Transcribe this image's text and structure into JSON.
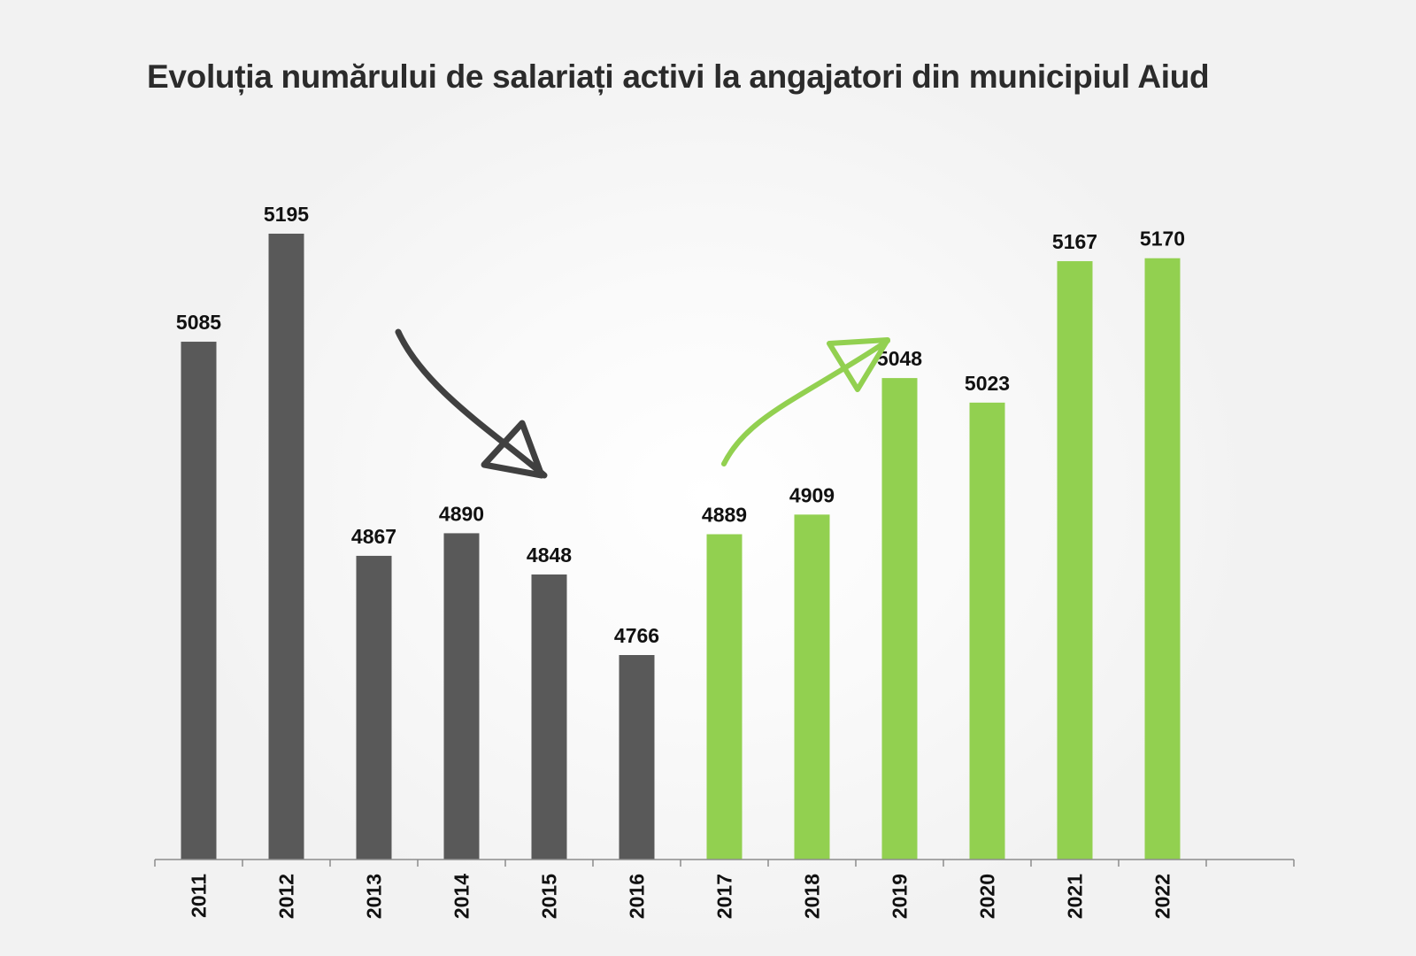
{
  "chart_data": {
    "type": "bar",
    "title": "Evoluția numărului de salariați activi la angajatori din municipiul Aiud",
    "xlabel": "",
    "ylabel": "",
    "categories": [
      "2011",
      "2012",
      "2013",
      "2014",
      "2015",
      "2016",
      "2017",
      "2018",
      "2019",
      "2020",
      "2021",
      "2022"
    ],
    "values": [
      5085,
      5195,
      4867,
      4890,
      4848,
      4766,
      4889,
      4909,
      5048,
      5023,
      5167,
      5170
    ],
    "bar_colors": [
      "#595959",
      "#595959",
      "#595959",
      "#595959",
      "#595959",
      "#595959",
      "#92d050",
      "#92d050",
      "#92d050",
      "#92d050",
      "#92d050",
      "#92d050"
    ],
    "grid": false,
    "legend": "none",
    "annotations": [
      {
        "type": "arrow",
        "direction": "down",
        "color": "#404040"
      },
      {
        "type": "arrow",
        "direction": "up",
        "color": "#92d050"
      }
    ]
  }
}
